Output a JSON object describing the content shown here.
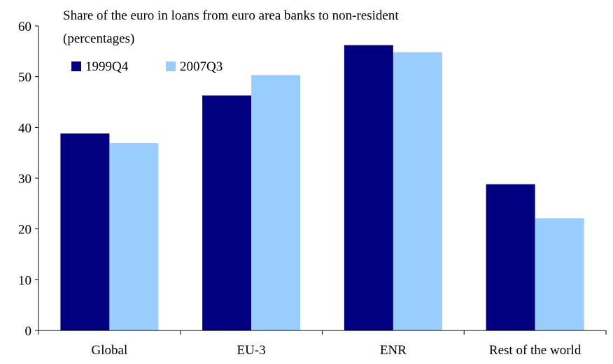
{
  "chart_data": {
    "type": "bar",
    "title": "Share of the euro in loans from euro area banks to non-resident",
    "subtitle": "(percentages)",
    "categories": [
      "Global",
      "EU-3",
      "ENR",
      "Rest of the world"
    ],
    "series": [
      {
        "name": "1999Q4",
        "values": [
          38.8,
          46.3,
          56.2,
          28.8
        ],
        "color": "#000080"
      },
      {
        "name": "2007Q3",
        "values": [
          36.9,
          50.3,
          54.8,
          22.1
        ],
        "color": "#99ccff"
      }
    ],
    "ylim": [
      0,
      60
    ],
    "yticks": [
      "0",
      "10",
      "20",
      "30",
      "40",
      "50",
      "60"
    ],
    "xlabel": "",
    "ylabel": "",
    "grid": false,
    "legend_position": "top-left"
  }
}
